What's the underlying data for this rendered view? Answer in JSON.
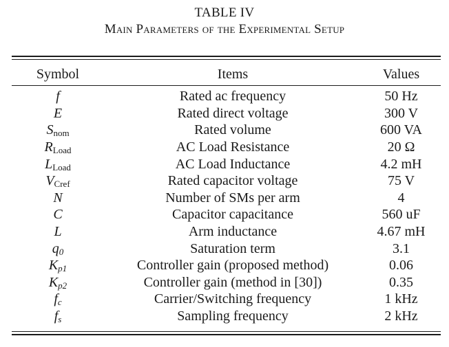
{
  "caption": {
    "label": "TABLE IV",
    "title": "Main Parameters of the Experimental Setup"
  },
  "columns": {
    "symbol": "Symbol",
    "items": "Items",
    "values": "Values"
  },
  "rows": [
    {
      "sym": "f",
      "sub": "",
      "item": "Rated ac frequency",
      "value": "50 Hz"
    },
    {
      "sym": "E",
      "sub": "",
      "item": "Rated direct voltage",
      "value": "300 V"
    },
    {
      "sym": "S",
      "sub": "nom",
      "item": "Rated volume",
      "value": "600 VA"
    },
    {
      "sym": "R",
      "sub": "Load",
      "item": "AC Load Resistance",
      "value": "20 Ω"
    },
    {
      "sym": "L",
      "sub": "Load",
      "item": "AC Load Inductance",
      "value": "4.2 mH"
    },
    {
      "sym": "V",
      "sub": "Cref",
      "item": "Rated capacitor voltage",
      "value": "75 V"
    },
    {
      "sym": "N",
      "sub": "",
      "item": "Number of SMs per arm",
      "value": "4"
    },
    {
      "sym": "C",
      "sub": "",
      "item": "Capacitor capacitance",
      "value": "560 uF"
    },
    {
      "sym": "L",
      "sub": "",
      "item": "Arm inductance",
      "value": "4.67 mH"
    },
    {
      "sym": "q",
      "sub": "0",
      "item": "Saturation term",
      "value": "3.1"
    },
    {
      "sym": "K",
      "sub": "p1",
      "item": "Controller gain (proposed method)",
      "value": "0.06"
    },
    {
      "sym": "K",
      "sub": "p2",
      "item": "Controller gain (method in [30])",
      "value": "0.35"
    },
    {
      "sym": "f",
      "sub": "c",
      "item": "Carrier/Switching frequency",
      "value": "1 kHz"
    },
    {
      "sym": "f",
      "sub": "s",
      "item": "Sampling frequency",
      "value": "2 kHz"
    }
  ]
}
